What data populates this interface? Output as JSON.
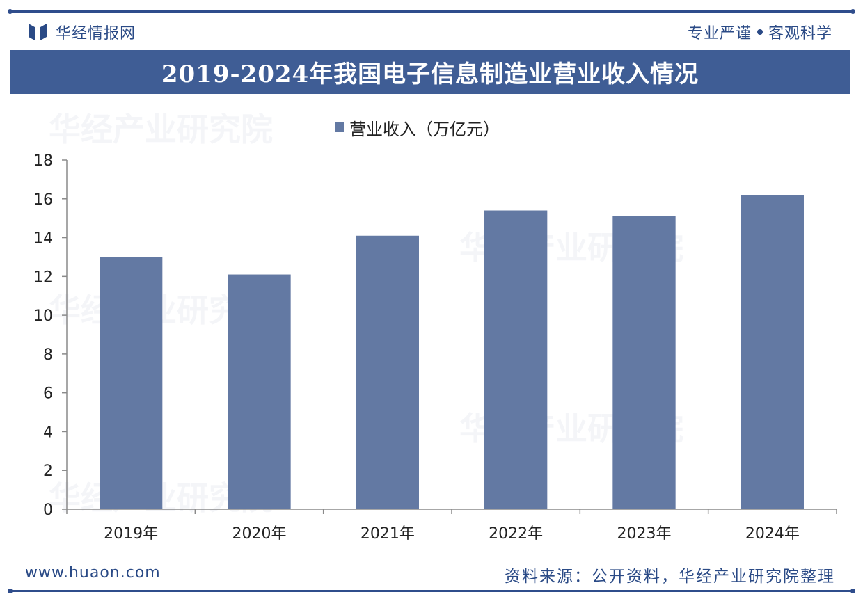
{
  "header": {
    "brand": "华经情报网",
    "slogan_left": "专业严谨",
    "slogan_right": "客观科学"
  },
  "title": "2019-2024年我国电子信息制造业营业收入情况",
  "footer": {
    "website": "www.huaon.com",
    "source": "资料来源：公开资料，华经产业研究院整理"
  },
  "colors": {
    "accent": "#3f5d95",
    "bar": "#6379a3",
    "text": "#2a4a86"
  },
  "chart_data": {
    "type": "bar",
    "categories": [
      "2019年",
      "2020年",
      "2021年",
      "2022年",
      "2023年",
      "2024年"
    ],
    "series": [
      {
        "name": "营业收入（万亿元）",
        "values": [
          13.0,
          12.1,
          14.1,
          15.4,
          15.1,
          16.2
        ]
      }
    ],
    "ylim": [
      0,
      18
    ],
    "yticks": [
      0,
      2,
      4,
      6,
      8,
      10,
      12,
      14,
      16,
      18
    ],
    "legend_position": "top-center",
    "grid": false
  }
}
